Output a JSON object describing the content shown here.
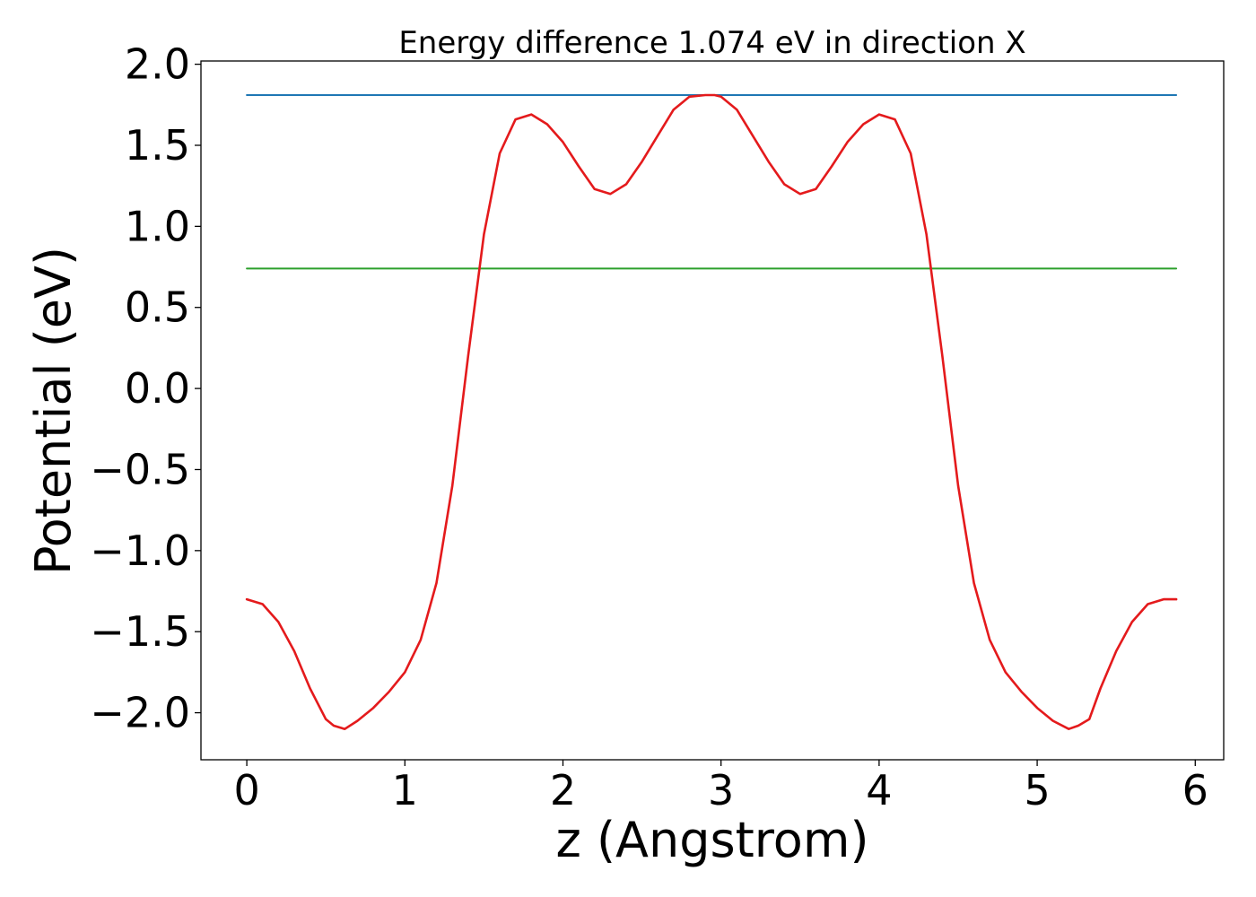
{
  "chart_data": {
    "type": "line",
    "title": "Energy difference 1.074 eV in direction X",
    "xlabel": "z (Angstrom)",
    "ylabel": "Potential (eV)",
    "xlim": [
      -0.29,
      6.18
    ],
    "ylim": [
      -2.29,
      2.02
    ],
    "xticks": [
      0,
      1,
      2,
      3,
      4,
      5,
      6
    ],
    "xtick_labels": [
      "0",
      "1",
      "2",
      "3",
      "4",
      "5",
      "6"
    ],
    "yticks": [
      -2.0,
      -1.5,
      -1.0,
      -0.5,
      0.0,
      0.5,
      1.0,
      1.5,
      2.0
    ],
    "ytick_labels": [
      "−2.0",
      "−1.5",
      "−1.0",
      "−0.5",
      "0.0",
      "0.5",
      "1.0",
      "1.5",
      "2.0"
    ],
    "grid": false,
    "legend": "none",
    "series": [
      {
        "kind": "hline",
        "color": "#1f77b4",
        "x": [
          0,
          5.88
        ],
        "y": [
          1.81,
          1.81
        ]
      },
      {
        "kind": "hline",
        "color": "#2ca02c",
        "x": [
          0,
          5.88
        ],
        "y": [
          0.74,
          0.74
        ]
      },
      {
        "kind": "curve",
        "color": "#e41a1c",
        "x": [
          0,
          0.1,
          0.2,
          0.3,
          0.4,
          0.5,
          0.55,
          0.62,
          0.7,
          0.8,
          0.9,
          1.0,
          1.1,
          1.2,
          1.3,
          1.4,
          1.5,
          1.6,
          1.7,
          1.8,
          1.9,
          2.0,
          2.1,
          2.2,
          2.3,
          2.4,
          2.5,
          2.6,
          2.7,
          2.8,
          2.9,
          2.96,
          3.0,
          3.1,
          3.2,
          3.3,
          3.4,
          3.5,
          3.6,
          3.7,
          3.8,
          3.9,
          4.0,
          4.1,
          4.2,
          4.3,
          4.4,
          4.5,
          4.6,
          4.7,
          4.8,
          4.9,
          5.0,
          5.1,
          5.2,
          5.26,
          5.33,
          5.4,
          5.5,
          5.6,
          5.7,
          5.8,
          5.88
        ],
        "y": [
          -1.3,
          -1.33,
          -1.44,
          -1.62,
          -1.85,
          -2.04,
          -2.08,
          -2.1,
          -2.05,
          -1.97,
          -1.87,
          -1.75,
          -1.55,
          -1.2,
          -0.6,
          0.2,
          0.95,
          1.45,
          1.66,
          1.69,
          1.63,
          1.52,
          1.37,
          1.23,
          1.2,
          1.26,
          1.4,
          1.56,
          1.72,
          1.8,
          1.81,
          1.81,
          1.8,
          1.72,
          1.56,
          1.4,
          1.26,
          1.2,
          1.23,
          1.37,
          1.52,
          1.63,
          1.69,
          1.66,
          1.45,
          0.95,
          0.2,
          -0.6,
          -1.2,
          -1.55,
          -1.75,
          -1.87,
          -1.97,
          -2.05,
          -2.1,
          -2.08,
          -2.04,
          -1.85,
          -1.62,
          -1.44,
          -1.33,
          -1.3,
          -1.3
        ]
      }
    ]
  }
}
